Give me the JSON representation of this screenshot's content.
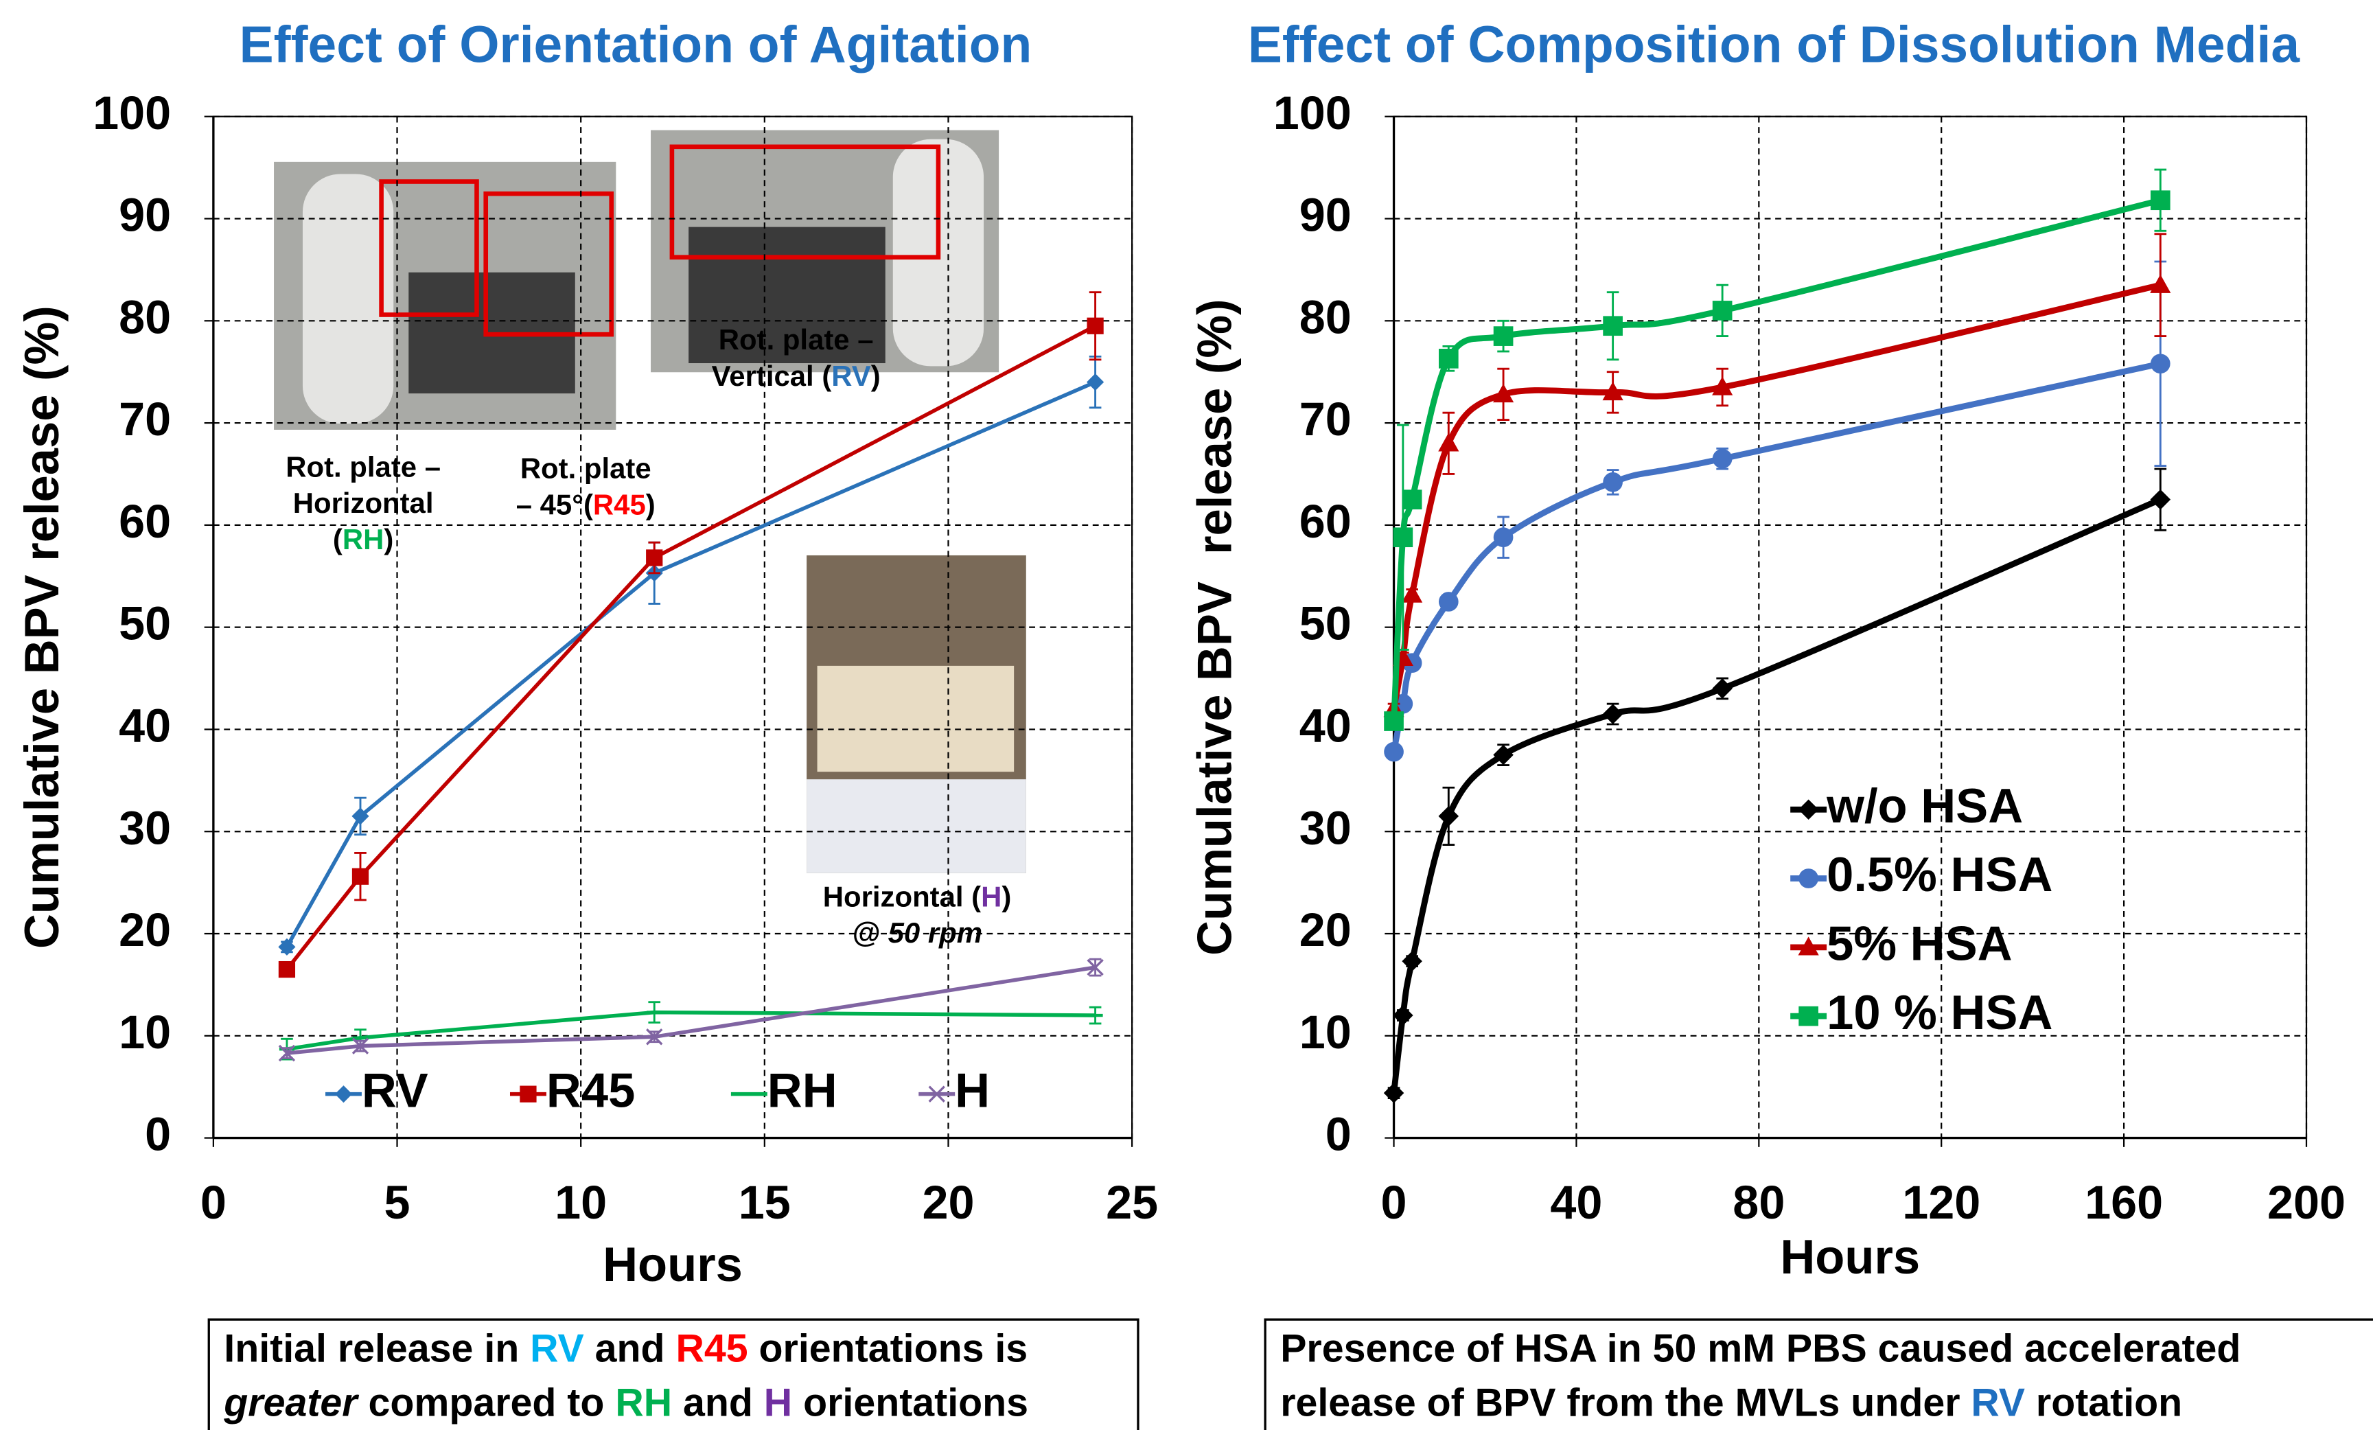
{
  "chart_data": [
    {
      "type": "line",
      "title": "Effect of Orientation of Agitation",
      "x_label": "Hours",
      "y_label": "Cumulative BPV release (%)",
      "x": [
        2,
        4,
        12,
        24
      ],
      "xlim": [
        0,
        25
      ],
      "xticks": [
        0,
        5,
        10,
        15,
        20,
        25
      ],
      "ylim": [
        0,
        100
      ],
      "yticks": [
        0,
        10,
        20,
        30,
        40,
        50,
        60,
        70,
        80,
        90,
        100
      ],
      "grid": true,
      "smooth": false,
      "series": [
        {
          "name": "RV",
          "color": "#2a72b8",
          "marker": "diamond",
          "values": [
            18.7,
            31.5,
            55.3,
            74.0
          ],
          "errors": [
            0.5,
            1.8,
            3.0,
            2.5
          ]
        },
        {
          "name": "R45",
          "color": "#c00000",
          "marker": "square",
          "values": [
            16.5,
            25.6,
            56.8,
            79.5
          ],
          "errors": [
            0.5,
            2.3,
            1.5,
            3.3
          ]
        },
        {
          "name": "RH",
          "color": "#00b050",
          "marker": "dash",
          "values": [
            8.7,
            9.8,
            12.3,
            12.0
          ],
          "errors": [
            1.0,
            0.8,
            1.0,
            0.8
          ]
        },
        {
          "name": "H",
          "color": "#8064a2",
          "marker": "x",
          "values": [
            8.3,
            9.0,
            9.9,
            16.7
          ],
          "errors": [
            0.5,
            0.5,
            0.5,
            0.8
          ]
        }
      ],
      "annotations": [
        {
          "lines": [
            [
              {
                "text": "Rot. plate –"
              }
            ],
            [
              {
                "text": "Horizontal"
              }
            ],
            [
              {
                "text": "("
              },
              {
                "text": "RH",
                "color": "#00b050"
              },
              {
                "text": ")"
              }
            ]
          ]
        },
        {
          "lines": [
            [
              {
                "text": "Rot. plate"
              }
            ],
            [
              {
                "text": "– 45°("
              },
              {
                "text": "R45",
                "color": "#ff0000"
              },
              {
                "text": ")"
              }
            ]
          ]
        },
        {
          "lines": [
            [
              {
                "text": "Rot. plate –"
              }
            ],
            [
              {
                "text": "Vertical ("
              },
              {
                "text": "RV",
                "color": "#2a72b8"
              },
              {
                "text": ")"
              }
            ]
          ]
        },
        {
          "lines": [
            [
              {
                "text": "Horizontal ("
              },
              {
                "text": "H",
                "color": "#7030a0"
              },
              {
                "text": ")"
              }
            ],
            [
              {
                "text": "@ 50 rpm",
                "italic": true
              }
            ]
          ]
        }
      ]
    },
    {
      "type": "line",
      "title": "Effect of Composition of Dissolution Media",
      "x_label": "Hours",
      "y_label": "Cumulative BPV  release (%)",
      "x": [
        0,
        2,
        4,
        12,
        24,
        48,
        72,
        168
      ],
      "xlim": [
        0,
        200
      ],
      "xticks": [
        0,
        40,
        80,
        120,
        160,
        200
      ],
      "ylim": [
        0,
        100
      ],
      "yticks": [
        0,
        10,
        20,
        30,
        40,
        50,
        60,
        70,
        80,
        90,
        100
      ],
      "grid": true,
      "smooth": true,
      "series": [
        {
          "name": "w/o HSA",
          "color": "#000000",
          "marker": "diamond",
          "values": [
            4.4,
            12.0,
            17.3,
            31.5,
            37.5,
            41.5,
            44.0,
            62.5
          ],
          "errors": [
            0.5,
            0.5,
            0.5,
            2.8,
            1.0,
            1.0,
            1.0,
            3.0
          ]
        },
        {
          "name": "0.5% HSA",
          "color": "#4472c4",
          "marker": "circle",
          "values": [
            37.8,
            42.5,
            46.5,
            52.5,
            58.8,
            64.2,
            66.5,
            75.8
          ],
          "errors": [
            0.5,
            0.5,
            0.5,
            0.5,
            2.0,
            1.2,
            1.0,
            10.0
          ]
        },
        {
          "name": "5% HSA",
          "color": "#c00000",
          "marker": "triangle",
          "values": [
            42.0,
            47.0,
            53.2,
            68.0,
            72.8,
            73.0,
            73.5,
            83.5
          ],
          "errors": [
            0.5,
            0.5,
            0.5,
            3.0,
            2.5,
            2.0,
            1.8,
            5.0
          ]
        },
        {
          "name": "10 % HSA",
          "color": "#00b050",
          "marker": "square",
          "values": [
            40.8,
            58.8,
            62.5,
            76.3,
            78.5,
            79.5,
            81.0,
            91.8
          ],
          "errors": [
            0.5,
            11.0,
            0.5,
            1.2,
            1.5,
            3.3,
            2.5,
            3.0
          ]
        }
      ]
    }
  ],
  "notes": [
    {
      "lines": [
        [
          {
            "text": "Initial release in "
          },
          {
            "text": "RV",
            "color": "#00b0f0"
          },
          {
            "text": " and "
          },
          {
            "text": "R45",
            "color": "#ff0000"
          },
          {
            "text": " orientations is"
          }
        ],
        [
          {
            "text": "greater",
            "italic": true
          },
          {
            "text": " compared to "
          },
          {
            "text": "RH",
            "color": "#00b050"
          },
          {
            "text": " and "
          },
          {
            "text": "H",
            "color": "#7030a0"
          },
          {
            "text": " orientations"
          }
        ]
      ]
    },
    {
      "lines": [
        [
          {
            "text": "Presence of HSA in 50 mM PBS caused accelerated"
          }
        ],
        [
          {
            "text": "release of BPV from the MVLs under "
          },
          {
            "text": "RV",
            "color": "#1f6fc0"
          },
          {
            "text": " rotation"
          }
        ]
      ]
    }
  ]
}
